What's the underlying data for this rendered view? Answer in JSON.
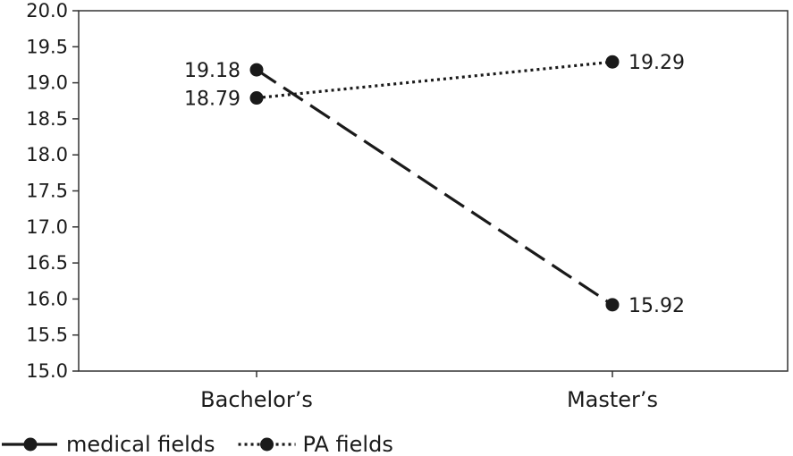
{
  "chart_data": {
    "type": "line",
    "title": "",
    "xlabel": "",
    "ylabel": "",
    "categories": [
      "Bachelor’s",
      "Master’s"
    ],
    "ylim": [
      15.0,
      20.0
    ],
    "yticks": [
      "15.0",
      "15.5",
      "16.0",
      "16.5",
      "17.0",
      "17.5",
      "18.0",
      "18.5",
      "19.0",
      "19.5",
      "20.0"
    ],
    "grid": false,
    "legend_position": "bottom-left",
    "series": [
      {
        "name": "medical fields",
        "line_style": "dashed",
        "values": [
          19.18,
          15.92
        ],
        "value_labels": [
          "19.18",
          "15.92"
        ]
      },
      {
        "name": "PA fields",
        "line_style": "dotted",
        "values": [
          18.79,
          19.29
        ],
        "value_labels": [
          "18.79",
          "19.29"
        ]
      }
    ],
    "colors": {
      "line": "#1a1a1a",
      "axis": "#333333"
    }
  }
}
